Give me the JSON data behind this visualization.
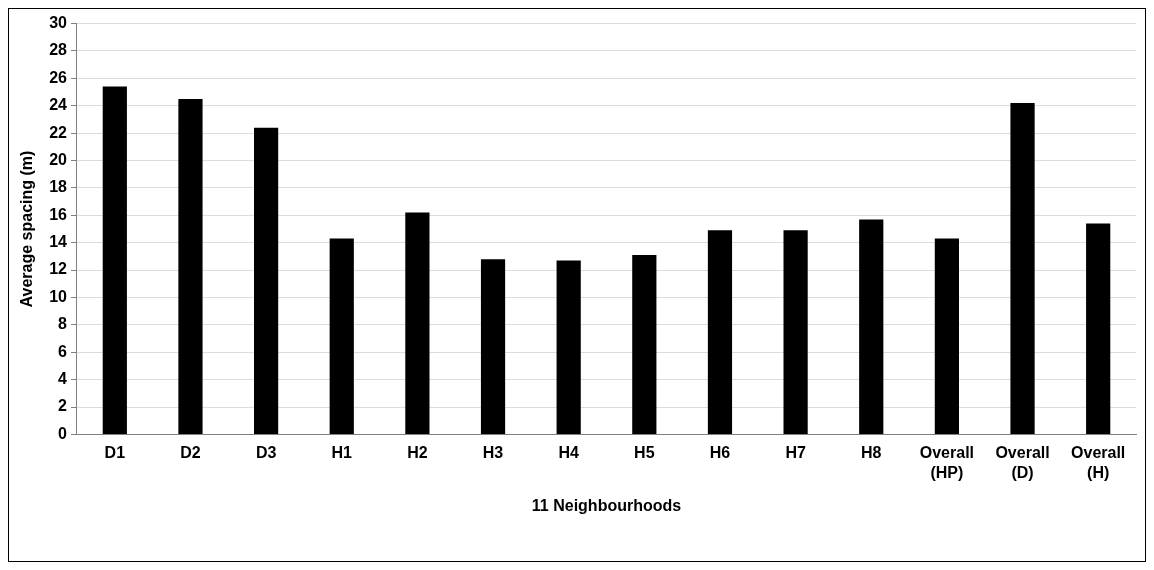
{
  "chart_data": {
    "type": "bar",
    "xlabel": "11 Neighbourhoods",
    "ylabel": "Average spacing (m)",
    "categories": [
      "D1",
      "D2",
      "D3",
      "H1",
      "H2",
      "H3",
      "H4",
      "H5",
      "H6",
      "H7",
      "H8",
      "Overall (HP)",
      "Overall (D)",
      "Overall (H)"
    ],
    "values": [
      25.4,
      24.5,
      22.4,
      14.3,
      16.2,
      12.8,
      12.7,
      13.1,
      14.9,
      14.9,
      15.7,
      14.3,
      24.2,
      15.4
    ],
    "color": "#000000",
    "ylim": [
      0,
      30
    ],
    "yticks": [
      0,
      2,
      4,
      6,
      8,
      10,
      12,
      14,
      16,
      18,
      20,
      22,
      24,
      26,
      28,
      30
    ],
    "grid": "y",
    "legend": false
  }
}
